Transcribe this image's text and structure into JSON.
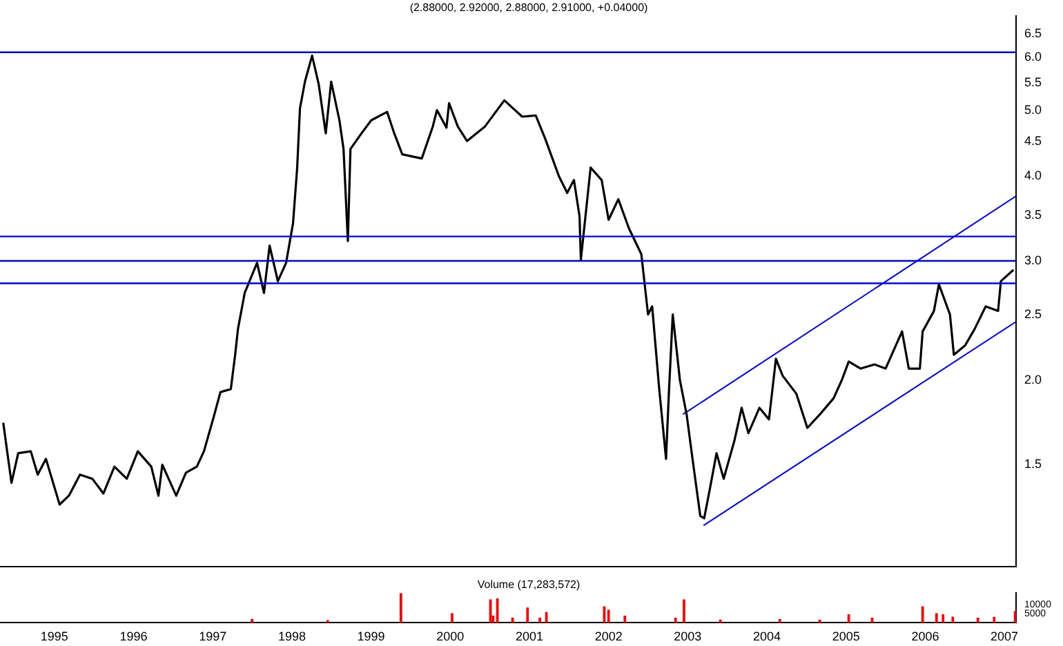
{
  "chart_data": [
    {
      "type": "line",
      "title": "(2.88000, 2.92000, 2.88000, 2.91000, +0.04000)",
      "log": "y",
      "grid": false,
      "legend": false,
      "marker": "none",
      "tick_labels": "y",
      "xlim": [
        "1994-04-25",
        "2007-02-24"
      ],
      "xticks": [
        "1995",
        "1996",
        "1997",
        "1998",
        "1999",
        "2000",
        "2001",
        "2002",
        "2003",
        "2004",
        "2005",
        "2006",
        "2007"
      ],
      "ylim": [
        1.06,
        6.9
      ],
      "yticks": [
        {
          "value": 1.5,
          "label": "1.5"
        },
        {
          "value": 2,
          "label": "2.0"
        },
        {
          "value": 2.5,
          "label": "2.5"
        },
        {
          "value": 3,
          "label": "3.0"
        },
        {
          "value": 3.5,
          "label": "3.5"
        },
        {
          "value": 4,
          "label": "4.0"
        },
        {
          "value": 4.5,
          "label": "4.5"
        },
        {
          "value": 5,
          "label": "5.0"
        },
        {
          "value": 5.5,
          "label": "5.5"
        },
        {
          "value": 6,
          "label": "6.0"
        },
        {
          "value": 6.5,
          "label": "6.5"
        }
      ],
      "ref_lines": [
        {
          "axis": "y",
          "value": 6.1,
          "color": "#0000ff"
        },
        {
          "axis": "y",
          "value": 3.26,
          "color": "#0000ff"
        },
        {
          "axis": "y",
          "value": 3.0,
          "color": "#0000ff"
        },
        {
          "axis": "y",
          "value": 2.78,
          "color": "#0000ff"
        }
      ],
      "series": [
        {
          "color": "#000000",
          "x": [
            "1994-05-10",
            "1994-06-17",
            "1994-07-18",
            "1994-09-14",
            "1994-10-16",
            "1994-11-23",
            "1995-01-25",
            "1995-03-09",
            "1995-04-29",
            "1995-06-25",
            "1995-08-15",
            "1995-10-05",
            "1995-12-01",
            "1996-01-21",
            "1996-03-23",
            "1996-04-25",
            "1996-05-13",
            "1996-07-16",
            "1996-08-30",
            "1996-10-19",
            "1996-11-21",
            "1997-01-04",
            "1997-02-05",
            "1997-03-25",
            "1997-04-14",
            "1997-04-27",
            "1997-05-28",
            "1997-07-24",
            "1997-08-25",
            "1997-09-20",
            "1997-10-28",
            "1997-12-05",
            "1998-01-06",
            "1998-01-25",
            "1998-02-07",
            "1998-03-02",
            "1998-04-04",
            "1998-05-05",
            "1998-06-06",
            "1998-07-01",
            "1998-08-08",
            "1998-08-27",
            "1998-09-16",
            "1998-09-28",
            "1998-11-18",
            "1999-01-02",
            "1999-03-16",
            "1999-04-18",
            "1999-05-25",
            "1999-08-23",
            "1999-10-13",
            "1999-11-01",
            "1999-12-15",
            "1999-12-27",
            "2000-02-05",
            "2000-03-19",
            "2000-06-10",
            "2000-09-07",
            "2000-11-28",
            "2001-01-30",
            "2001-03-14",
            "2001-05-17",
            "2001-06-24",
            "2001-07-25",
            "2001-08-20",
            "2001-08-26",
            "2001-10-10",
            "2001-11-30",
            "2002-01-01",
            "2002-02-15",
            "2002-04-05",
            "2002-06-01",
            "2002-07-02",
            "2002-07-21",
            "2002-08-22",
            "2002-09-23",
            "2002-10-06",
            "2002-10-24",
            "2002-11-26",
            "2002-12-27",
            "2003-01-28",
            "2003-02-28",
            "2003-03-18",
            "2003-04-13",
            "2003-05-14",
            "2003-06-16",
            "2003-08-05",
            "2003-09-07",
            "2003-10-08",
            "2003-11-28",
            "2004-01-11",
            "2004-02-12",
            "2004-03-14",
            "2004-05-16",
            "2004-07-06",
            "2004-09-02",
            "2004-11-04",
            "2004-12-12",
            "2005-01-13",
            "2005-03-09",
            "2005-05-12",
            "2005-07-02",
            "2005-09-16",
            "2005-10-17",
            "2005-12-07",
            "2005-12-20",
            "2006-02-10",
            "2006-03-05",
            "2006-04-25",
            "2006-05-13",
            "2006-07-04",
            "2006-08-17",
            "2006-10-07",
            "2006-12-03",
            "2006-12-16",
            "2007-02-12"
          ],
          "values": [
            1.73,
            1.41,
            1.56,
            1.57,
            1.45,
            1.53,
            1.31,
            1.35,
            1.45,
            1.43,
            1.36,
            1.49,
            1.43,
            1.57,
            1.49,
            1.35,
            1.5,
            1.35,
            1.46,
            1.49,
            1.57,
            1.76,
            1.92,
            1.94,
            2.18,
            2.38,
            2.69,
            2.98,
            2.69,
            3.16,
            2.8,
            2.98,
            3.41,
            4.11,
            5.04,
            5.52,
            6.03,
            5.46,
            4.63,
            5.52,
            4.84,
            4.39,
            3.21,
            4.39,
            4.63,
            4.84,
            4.98,
            4.63,
            4.31,
            4.25,
            4.74,
            5.01,
            4.72,
            5.13,
            4.74,
            4.51,
            4.74,
            5.18,
            4.9,
            4.92,
            4.55,
            4.0,
            3.78,
            3.95,
            3.49,
            3.01,
            4.12,
            3.95,
            3.45,
            3.7,
            3.35,
            3.07,
            2.5,
            2.57,
            1.95,
            1.53,
            1.91,
            2.5,
            2.0,
            1.78,
            1.49,
            1.26,
            1.25,
            1.38,
            1.56,
            1.43,
            1.63,
            1.82,
            1.67,
            1.82,
            1.75,
            2.15,
            2.03,
            1.91,
            1.7,
            1.78,
            1.88,
            2.0,
            2.13,
            2.08,
            2.11,
            2.08,
            2.36,
            2.08,
            2.08,
            2.36,
            2.53,
            2.77,
            2.5,
            2.18,
            2.25,
            2.38,
            2.57,
            2.53,
            2.8,
            2.91
          ]
        },
        {
          "color": "#0000ff",
          "x": [
            "2002-12-10",
            "2007-02-24"
          ],
          "values": [
            1.78,
            3.74
          ]
        },
        {
          "color": "#0000ff",
          "x": [
            "2003-03-15",
            "2007-02-24"
          ],
          "values": [
            1.22,
            2.44
          ]
        }
      ]
    },
    {
      "type": "bar",
      "title": "Volume (17,283,572)",
      "grid": false,
      "legend": false,
      "xlim": [
        "1994-04-25",
        "2007-02-24"
      ],
      "xticks": [
        "1995",
        "1996",
        "1997",
        "1998",
        "1999",
        "2000",
        "2001",
        "2002",
        "2003",
        "2004",
        "2005",
        "2006",
        "2007"
      ],
      "ylim": [
        0,
        16250
      ],
      "yticks": [
        5000,
        10000
      ],
      "series": [
        {
          "color": "#ff0000",
          "x": [
            "1997-07-01",
            "1998-06-15",
            "1999-05-19",
            "2000-01-10",
            "2000-07-05",
            "2000-07-17",
            "2000-08-06",
            "2000-10-15",
            "2000-12-23",
            "2001-02-18",
            "2001-03-20",
            "2001-12-12",
            "2002-01-01",
            "2002-03-17",
            "2002-11-06",
            "2002-12-15",
            "2003-06-01",
            "2004-03-01",
            "2004-09-01",
            "2005-01-13",
            "2005-05-01",
            "2005-12-20",
            "2006-02-22",
            "2006-03-24",
            "2006-05-08",
            "2006-09-01",
            "2006-11-15",
            "2007-02-20"
          ],
          "values": [
            1900,
            1200,
            16000,
            5000,
            12500,
            3700,
            13100,
            2500,
            8100,
            2500,
            5600,
            8700,
            6900,
            3700,
            2500,
            12500,
            1500,
            1800,
            1500,
            4400,
            2500,
            8700,
            5000,
            4400,
            3100,
            2500,
            3000,
            6200
          ]
        }
      ]
    }
  ]
}
